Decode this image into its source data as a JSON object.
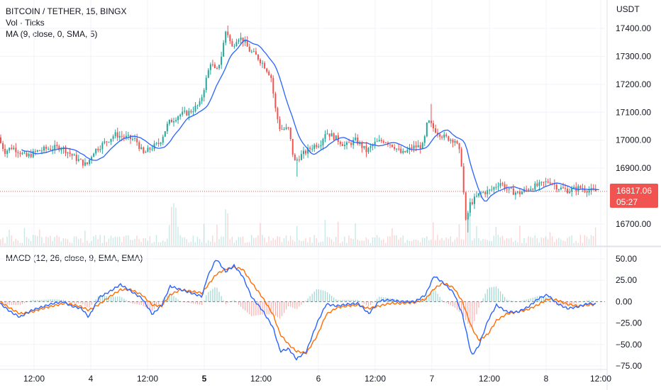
{
  "header": {
    "symbol": "BITCOIN / TETHER, 15, BINGX",
    "volume_indicator": "Vol · Ticks",
    "ma_indicator": "MA (9, close, 0, SMA, 5)",
    "macd_indicator": "MACD (12, 26, close, 9, EMA, EMA)"
  },
  "price_axis": {
    "currency": "USDT",
    "current_price": "16817.06",
    "countdown": "05:27"
  },
  "colors": {
    "up": "#26a69a",
    "down": "#ef5350",
    "ma_line": "#2962ff",
    "macd_line": "#2962ff",
    "signal_line": "#ff6d00",
    "grid": "#f0f3fa",
    "current_price": "#f05350"
  },
  "chart_data": [
    {
      "type": "candlestick",
      "title": "BITCOIN / TETHER, 15, BINGX",
      "ylabel": "USDT",
      "ylim": [
        16630,
        17460
      ],
      "yticks": [
        16700,
        16800,
        16900,
        17000,
        17100,
        17200,
        17300,
        17400
      ],
      "ytick_labels": [
        "16700.00",
        "16800.00",
        "16900.00",
        "17000.00",
        "17100.00",
        "17200.00",
        "17300.00",
        "17400.00"
      ],
      "xticks": [
        "12:00",
        "4",
        "12:00",
        "5",
        "12:00",
        "6",
        "12:00",
        "7",
        "12:00",
        "8",
        "12:00"
      ],
      "current_price": 16817.06,
      "path_anchors": [
        [
          0,
          17010
        ],
        [
          10,
          16960
        ],
        [
          20,
          16975
        ],
        [
          30,
          16960
        ],
        [
          40,
          16940
        ],
        [
          55,
          16960
        ],
        [
          70,
          16970
        ],
        [
          90,
          16975
        ],
        [
          110,
          16935
        ],
        [
          125,
          16910
        ],
        [
          135,
          16960
        ],
        [
          150,
          16990
        ],
        [
          165,
          17020
        ],
        [
          180,
          17010
        ],
        [
          195,
          17000
        ],
        [
          205,
          16950
        ],
        [
          215,
          16970
        ],
        [
          228,
          16990
        ],
        [
          240,
          17060
        ],
        [
          255,
          17090
        ],
        [
          270,
          17100
        ],
        [
          285,
          17130
        ],
        [
          292,
          17200
        ],
        [
          300,
          17280
        ],
        [
          308,
          17240
        ],
        [
          315,
          17300
        ],
        [
          322,
          17400
        ],
        [
          330,
          17330
        ],
        [
          338,
          17370
        ],
        [
          345,
          17360
        ],
        [
          355,
          17320
        ],
        [
          365,
          17300
        ],
        [
          375,
          17270
        ],
        [
          385,
          17230
        ],
        [
          392,
          17100
        ],
        [
          398,
          17040
        ],
        [
          410,
          17040
        ],
        [
          418,
          16920
        ],
        [
          425,
          16940
        ],
        [
          435,
          16960
        ],
        [
          445,
          16980
        ],
        [
          455,
          16990
        ],
        [
          462,
          17030
        ],
        [
          475,
          17010
        ],
        [
          490,
          16980
        ],
        [
          505,
          17000
        ],
        [
          520,
          16960
        ],
        [
          532,
          16990
        ],
        [
          545,
          17000
        ],
        [
          558,
          16980
        ],
        [
          570,
          16950
        ],
        [
          585,
          16975
        ],
        [
          600,
          16980
        ],
        [
          606,
          17070
        ],
        [
          615,
          17040
        ],
        [
          630,
          17010
        ],
        [
          645,
          17000
        ],
        [
          653,
          16940
        ],
        [
          660,
          16700
        ],
        [
          665,
          16770
        ],
        [
          680,
          16810
        ],
        [
          695,
          16820
        ],
        [
          708,
          16850
        ],
        [
          720,
          16820
        ],
        [
          735,
          16810
        ],
        [
          750,
          16830
        ],
        [
          765,
          16840
        ],
        [
          778,
          16855
        ],
        [
          790,
          16830
        ],
        [
          805,
          16820
        ],
        [
          820,
          16830
        ],
        [
          840,
          16817
        ]
      ]
    },
    {
      "type": "bar",
      "title": "Vol · Ticks",
      "note": "volume bars rendered per candle, colored by candle direction"
    },
    {
      "type": "line",
      "title": "MACD (12, 26, close, 9, EMA, EMA)",
      "ylim": [
        -80,
        60
      ],
      "yticks": [
        50,
        25,
        0,
        -25,
        -50,
        -75
      ],
      "ytick_labels": [
        "50.00",
        "25.00",
        "0.00",
        "−25.00",
        "−50.00",
        "−75.00"
      ],
      "series": [
        {
          "name": "MACD",
          "points": [
            [
              0,
              -2
            ],
            [
              15,
              -12
            ],
            [
              28,
              -18
            ],
            [
              45,
              -10
            ],
            [
              60,
              -6
            ],
            [
              75,
              -2
            ],
            [
              90,
              0
            ],
            [
              100,
              -5
            ],
            [
              115,
              -8
            ],
            [
              125,
              -18
            ],
            [
              140,
              5
            ],
            [
              155,
              12
            ],
            [
              170,
              20
            ],
            [
              185,
              12
            ],
            [
              200,
              4
            ],
            [
              215,
              -15
            ],
            [
              228,
              -4
            ],
            [
              240,
              18
            ],
            [
              255,
              14
            ],
            [
              270,
              10
            ],
            [
              285,
              6
            ],
            [
              292,
              28
            ],
            [
              305,
              50
            ],
            [
              318,
              35
            ],
            [
              330,
              42
            ],
            [
              342,
              30
            ],
            [
              355,
              5
            ],
            [
              370,
              -10
            ],
            [
              385,
              -30
            ],
            [
              395,
              -58
            ],
            [
              407,
              -55
            ],
            [
              418,
              -67
            ],
            [
              432,
              -58
            ],
            [
              447,
              -25
            ],
            [
              460,
              -3
            ],
            [
              475,
              -5
            ],
            [
              490,
              -3
            ],
            [
              505,
              -2
            ],
            [
              520,
              -14
            ],
            [
              535,
              1
            ],
            [
              550,
              2
            ],
            [
              565,
              0
            ],
            [
              585,
              0
            ],
            [
              600,
              8
            ],
            [
              612,
              30
            ],
            [
              625,
              22
            ],
            [
              640,
              10
            ],
            [
              652,
              -15
            ],
            [
              665,
              -63
            ],
            [
              675,
              -52
            ],
            [
              688,
              -22
            ],
            [
              700,
              -4
            ],
            [
              715,
              -12
            ],
            [
              730,
              -12
            ],
            [
              745,
              -6
            ],
            [
              760,
              4
            ],
            [
              772,
              8
            ],
            [
              785,
              -2
            ],
            [
              800,
              -8
            ],
            [
              815,
              -6
            ],
            [
              830,
              -2
            ],
            [
              840,
              -3
            ]
          ]
        },
        {
          "name": "Signal",
          "points": [
            [
              0,
              0
            ],
            [
              15,
              -8
            ],
            [
              28,
              -14
            ],
            [
              45,
              -12
            ],
            [
              60,
              -8
            ],
            [
              75,
              -5
            ],
            [
              90,
              -2
            ],
            [
              100,
              -3
            ],
            [
              115,
              -6
            ],
            [
              125,
              -10
            ],
            [
              140,
              -3
            ],
            [
              155,
              6
            ],
            [
              170,
              14
            ],
            [
              185,
              14
            ],
            [
              200,
              8
            ],
            [
              215,
              -4
            ],
            [
              228,
              -5
            ],
            [
              240,
              8
            ],
            [
              255,
              14
            ],
            [
              270,
              12
            ],
            [
              285,
              10
            ],
            [
              292,
              18
            ],
            [
              305,
              32
            ],
            [
              318,
              38
            ],
            [
              330,
              40
            ],
            [
              342,
              38
            ],
            [
              355,
              22
            ],
            [
              370,
              5
            ],
            [
              385,
              -15
            ],
            [
              395,
              -38
            ],
            [
              407,
              -50
            ],
            [
              418,
              -58
            ],
            [
              432,
              -60
            ],
            [
              447,
              -40
            ],
            [
              460,
              -15
            ],
            [
              475,
              -7
            ],
            [
              490,
              -5
            ],
            [
              505,
              -4
            ],
            [
              520,
              -8
            ],
            [
              535,
              -5
            ],
            [
              550,
              -2
            ],
            [
              565,
              -2
            ],
            [
              585,
              -1
            ],
            [
              600,
              3
            ],
            [
              612,
              15
            ],
            [
              625,
              22
            ],
            [
              640,
              16
            ],
            [
              652,
              0
            ],
            [
              665,
              -30
            ],
            [
              675,
              -45
            ],
            [
              688,
              -38
            ],
            [
              700,
              -22
            ],
            [
              715,
              -14
            ],
            [
              730,
              -12
            ],
            [
              745,
              -9
            ],
            [
              760,
              -3
            ],
            [
              772,
              3
            ],
            [
              785,
              2
            ],
            [
              800,
              -3
            ],
            [
              815,
              -5
            ],
            [
              830,
              -4
            ],
            [
              840,
              -3
            ]
          ]
        }
      ]
    }
  ]
}
